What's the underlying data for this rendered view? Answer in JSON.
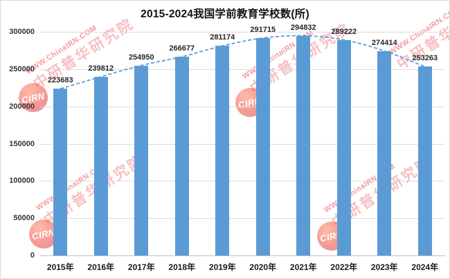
{
  "chart_data": {
    "type": "bar",
    "title": "2015-2024我国学前教育学校数(所)",
    "categories": [
      "2015年",
      "2016年",
      "2017年",
      "2018年",
      "2019年",
      "2020年",
      "2021年",
      "2022年",
      "2023年",
      "2024年"
    ],
    "values": [
      223683,
      239812,
      254950,
      266677,
      281174,
      291715,
      294832,
      289222,
      274414,
      253263
    ],
    "data_labels": [
      "223683",
      "239812",
      "254950",
      "266677",
      "281174",
      "291715",
      "294832",
      "289222",
      "274414",
      "253263"
    ],
    "xlabel": "",
    "ylabel": "",
    "ylim": [
      0,
      300000
    ],
    "y_ticks": [
      0,
      50000,
      100000,
      150000,
      200000,
      250000,
      300000
    ],
    "y_tick_labels": [
      "0",
      "50000",
      "100000",
      "150000",
      "200000",
      "250000",
      "300000"
    ],
    "grid": true,
    "legend": "none",
    "bar_color": "#5B9BD5",
    "gridline_color": "#dcdcdc",
    "trendline": {
      "style": "dashed",
      "color": "#5B9BD5"
    }
  },
  "watermark": {
    "latin_text": "WWW.ChinaIRN.COM",
    "chinese_text": "中研普华研究院",
    "logo_text": "CIRN",
    "color": "#E73A3F"
  }
}
